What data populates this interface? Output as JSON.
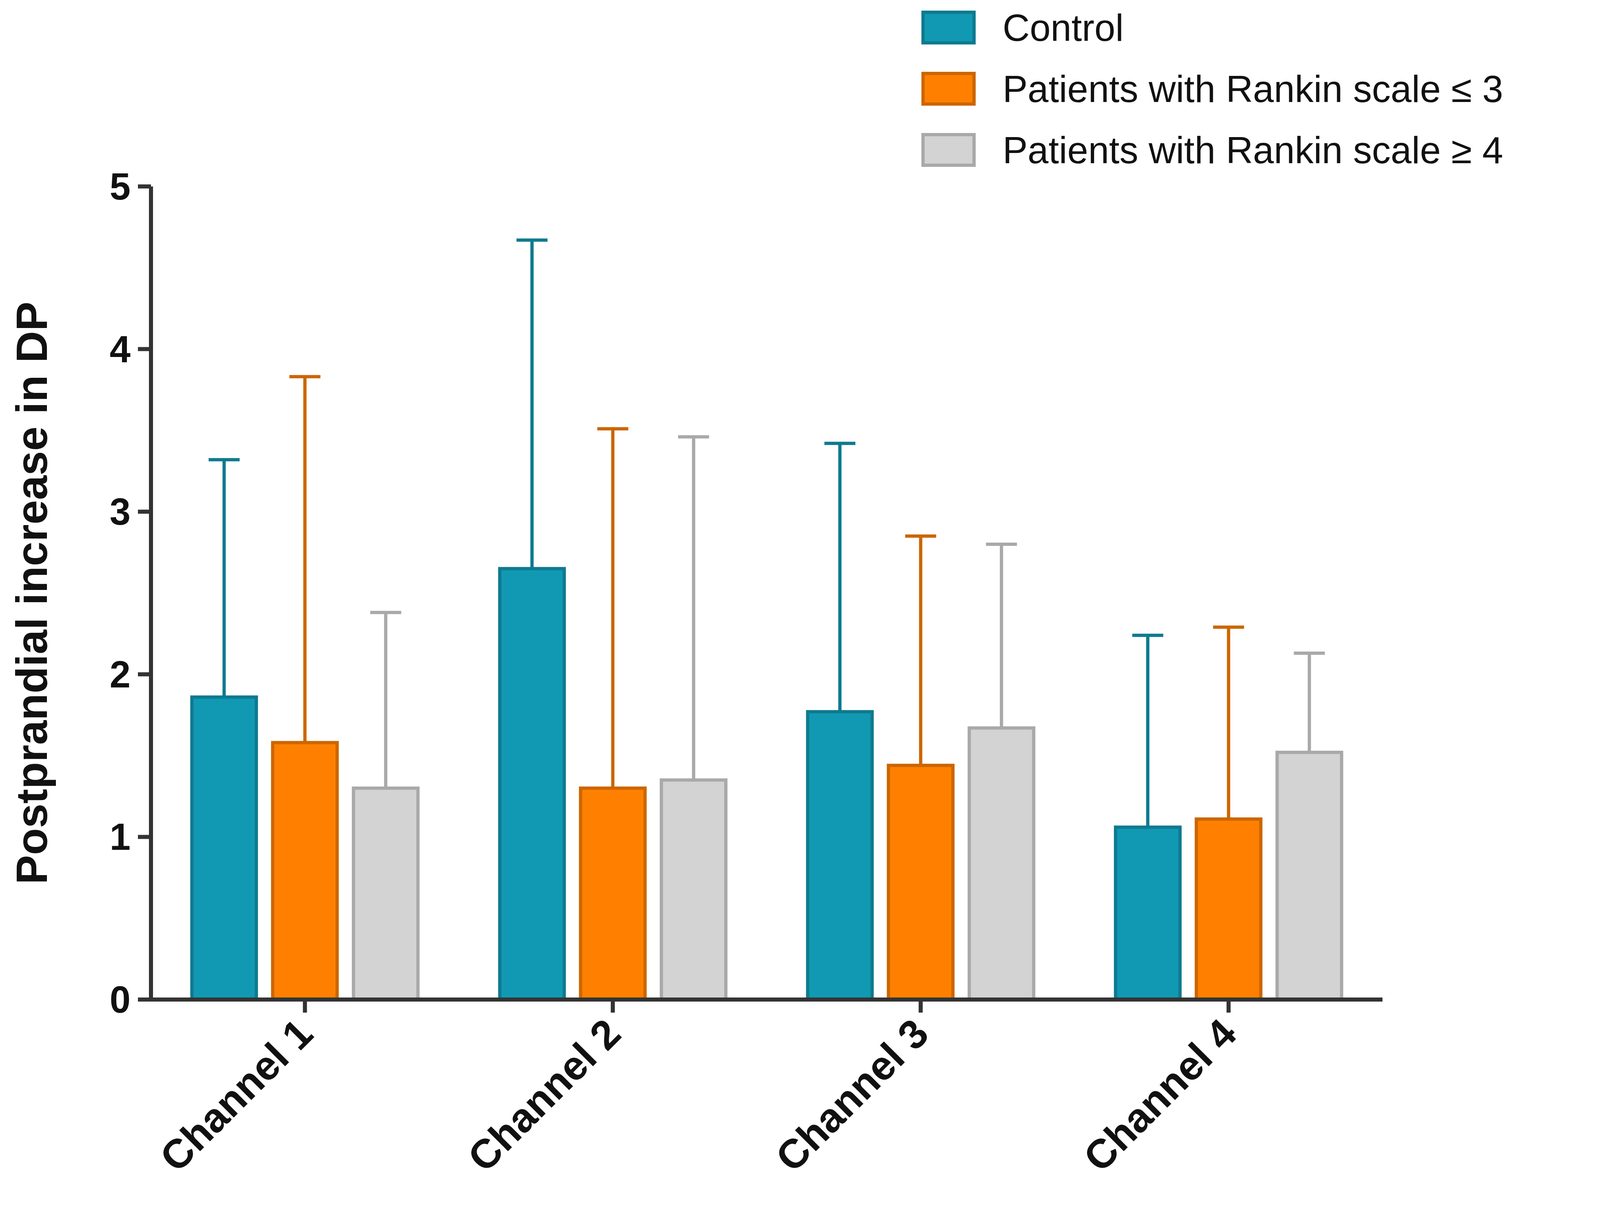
{
  "chart_data": {
    "type": "bar",
    "y_label": "Postprandial increase in DP",
    "categories": [
      "Channel 1",
      "Channel 2",
      "Channel 3",
      "Channel 4"
    ],
    "series": [
      {
        "name": "Control",
        "color": "#1199b3",
        "values": [
          1.86,
          2.65,
          1.77,
          1.06
        ],
        "errors": [
          1.46,
          2.02,
          1.65,
          1.18
        ]
      },
      {
        "name": "Patients with Rankin scale ≤ 3",
        "color": "#ff8000",
        "values": [
          1.58,
          1.3,
          1.44,
          1.11
        ],
        "errors": [
          2.25,
          2.21,
          1.41,
          1.18
        ]
      },
      {
        "name": "Patients with Rankin scale ≥ 4",
        "color": "#d3d3d3",
        "values": [
          1.3,
          1.35,
          1.67,
          1.52
        ],
        "errors": [
          1.08,
          2.11,
          1.13,
          0.61
        ]
      }
    ],
    "ylim": [
      0,
      5
    ],
    "yticks": [
      0,
      1,
      2,
      3,
      4,
      5
    ],
    "grid": false,
    "legend": "top-right"
  }
}
